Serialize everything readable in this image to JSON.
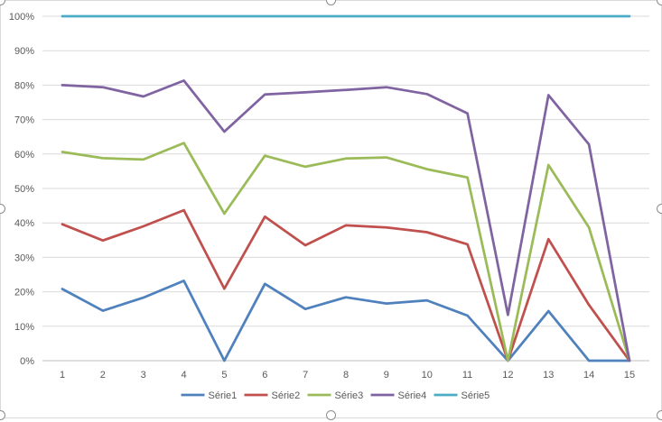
{
  "chart_data": {
    "type": "line",
    "title": "",
    "xlabel": "",
    "ylabel": "",
    "x": [
      1,
      2,
      3,
      4,
      5,
      6,
      7,
      8,
      9,
      10,
      11,
      12,
      13,
      14,
      15
    ],
    "x_tick_labels": [
      "1",
      "2",
      "3",
      "4",
      "5",
      "6",
      "7",
      "8",
      "9",
      "10",
      "11",
      "12",
      "13",
      "14",
      "15"
    ],
    "ylim": [
      0,
      1
    ],
    "y_tick_values": [
      0,
      0.1,
      0.2,
      0.3,
      0.4,
      0.5,
      0.6,
      0.7,
      0.8,
      0.9,
      1.0
    ],
    "y_tick_labels": [
      "0%",
      "10%",
      "20%",
      "30%",
      "40%",
      "50%",
      "60%",
      "70%",
      "80%",
      "90%",
      "100%"
    ],
    "grid": true,
    "legend_position": "bottom",
    "series": [
      {
        "name": "Série1",
        "color": "#4F81BD",
        "values": [
          0.208,
          0.145,
          0.183,
          0.232,
          0.0,
          0.223,
          0.15,
          0.184,
          0.166,
          0.175,
          0.131,
          0.0,
          0.144,
          0.0,
          0.0
        ]
      },
      {
        "name": "Série2",
        "color": "#C0504D",
        "values": [
          0.396,
          0.349,
          0.39,
          0.437,
          0.209,
          0.418,
          0.335,
          0.393,
          0.387,
          0.373,
          0.338,
          0.0,
          0.353,
          0.162,
          0.0
        ]
      },
      {
        "name": "Série3",
        "color": "#9BBB59",
        "values": [
          0.606,
          0.588,
          0.584,
          0.632,
          0.427,
          0.595,
          0.563,
          0.587,
          0.59,
          0.556,
          0.532,
          0.0,
          0.568,
          0.387,
          0.0
        ]
      },
      {
        "name": "Série4",
        "color": "#8064A2",
        "values": [
          0.8,
          0.794,
          0.767,
          0.813,
          0.665,
          0.773,
          0.779,
          0.786,
          0.794,
          0.774,
          0.718,
          0.133,
          0.771,
          0.628,
          0.0
        ]
      },
      {
        "name": "Série5",
        "color": "#4BACC6",
        "values": [
          1,
          1,
          1,
          1,
          1,
          1,
          1,
          1,
          1,
          1,
          1,
          1,
          1,
          1,
          1
        ]
      }
    ]
  }
}
